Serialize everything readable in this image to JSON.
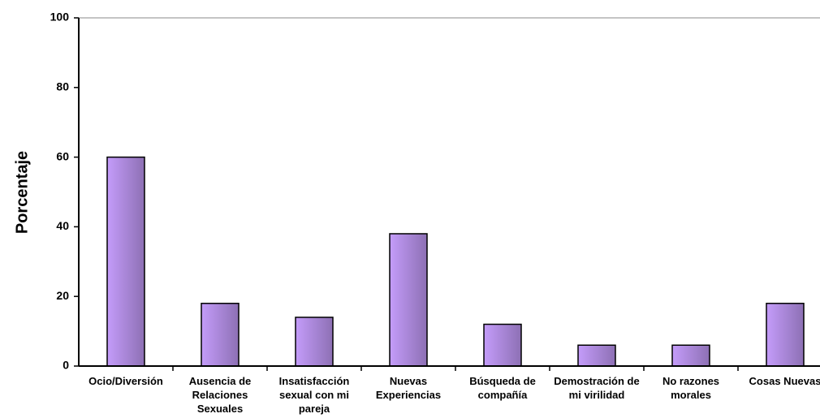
{
  "chart_data": {
    "type": "bar",
    "ylabel": "Porcentaje",
    "categories": [
      "Ocio/Diversión",
      "Ausencia de Relaciones Sexuales",
      "Insatisfacción sexual con mi pareja",
      "Nuevas Experiencias",
      "Búsqueda de compañía",
      "Demostración de mi virilidad",
      "No razones morales",
      "Cosas Nuevas"
    ],
    "values": [
      60,
      18,
      14,
      38,
      12,
      6,
      6,
      18
    ],
    "color": "#c49cfa",
    "ylim": [
      0,
      100
    ],
    "yticks": [
      0,
      20,
      40,
      60,
      80,
      100
    ],
    "grid": false
  }
}
